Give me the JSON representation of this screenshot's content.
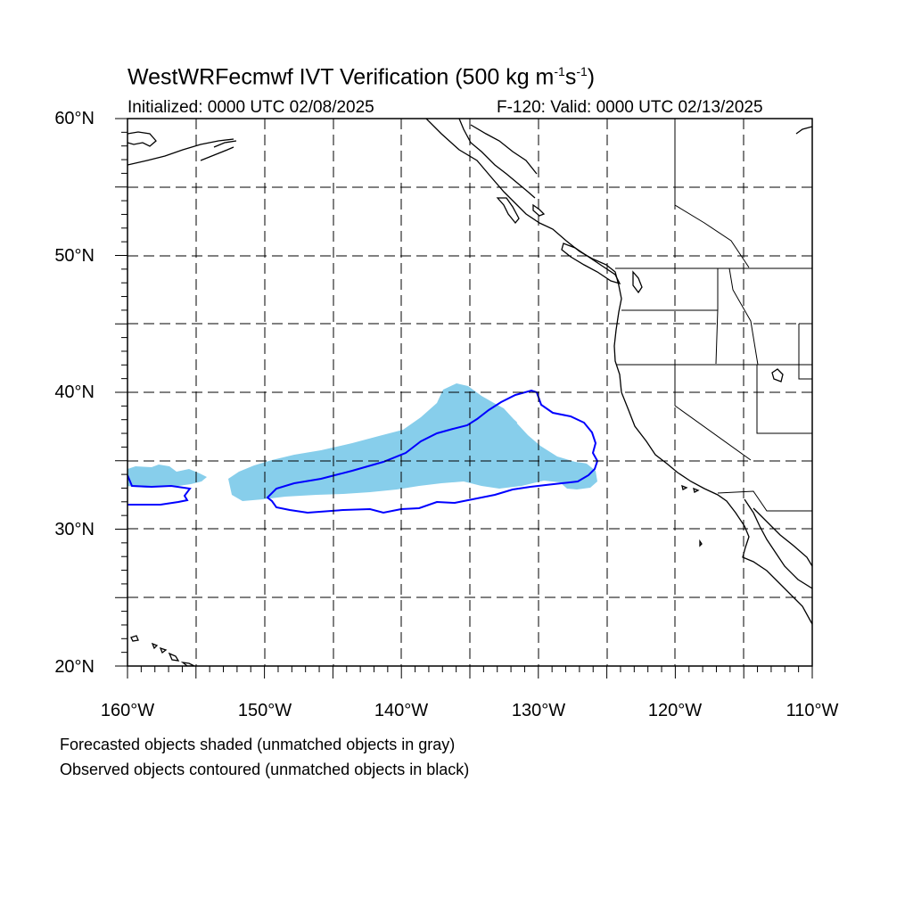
{
  "header": {
    "title_main": "WestWRFecmwf IVT Verification (500 kg m",
    "title_sup1": "-1",
    "title_mid": "s",
    "title_sup2": "-1",
    "title_end": ")",
    "initialized": "Initialized: 0000 UTC 02/08/2025",
    "valid": "F-120: Valid: 0000 UTC 02/13/2025"
  },
  "map": {
    "lon_range": [
      -160,
      -110
    ],
    "lat_range": [
      20,
      60
    ],
    "lat_labels": [
      "60°N",
      "50°N",
      "40°N",
      "30°N",
      "20°N"
    ],
    "lon_labels": [
      "160°W",
      "150°W",
      "140°W",
      "130°W",
      "120°W",
      "110°W"
    ],
    "gridlines": "dashed every 5 degrees",
    "forecast_object_color": "#87ceeb",
    "observed_contour_color": "#0000ff",
    "coastline_color": "#000000"
  },
  "notes": {
    "line1": "Forecasted objects shaded (unmatched objects in gray)",
    "line2": "Observed objects contoured (unmatched objects in black)"
  }
}
